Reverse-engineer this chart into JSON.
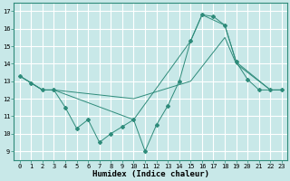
{
  "line1_x": [
    0,
    1,
    2,
    3,
    4,
    5,
    6,
    7,
    8,
    9,
    10,
    11,
    12,
    13,
    14,
    15,
    16,
    17,
    18,
    19,
    20,
    21,
    22,
    23
  ],
  "line1_y": [
    13.3,
    12.9,
    12.5,
    12.5,
    11.5,
    10.3,
    10.8,
    9.5,
    10.0,
    10.4,
    10.8,
    9.0,
    10.5,
    11.6,
    13.0,
    15.3,
    16.8,
    16.7,
    16.2,
    14.1,
    13.1,
    12.5,
    12.5,
    12.5
  ],
  "line2_x": [
    0,
    2,
    3,
    10,
    15,
    16,
    18,
    19,
    22,
    23
  ],
  "line2_y": [
    13.3,
    12.5,
    12.5,
    10.8,
    15.3,
    16.8,
    16.2,
    14.1,
    12.5,
    12.5
  ],
  "line3_x": [
    0,
    2,
    3,
    10,
    15,
    18,
    19,
    22,
    23
  ],
  "line3_y": [
    13.3,
    12.5,
    12.5,
    12.0,
    13.0,
    15.5,
    14.0,
    12.5,
    12.5
  ],
  "color": "#2e8b7a",
  "bg_color": "#c8e8e8",
  "grid_color": "#ffffff",
  "xlabel": "Humidex (Indice chaleur)",
  "xlim": [
    -0.5,
    23.5
  ],
  "ylim": [
    8.5,
    17.5
  ],
  "xticks": [
    0,
    1,
    2,
    3,
    4,
    5,
    6,
    7,
    8,
    9,
    10,
    11,
    12,
    13,
    14,
    15,
    16,
    17,
    18,
    19,
    20,
    21,
    22,
    23
  ],
  "yticks": [
    9,
    10,
    11,
    12,
    13,
    14,
    15,
    16,
    17
  ],
  "label_fontsize": 6.5,
  "tick_fontsize": 5.0
}
